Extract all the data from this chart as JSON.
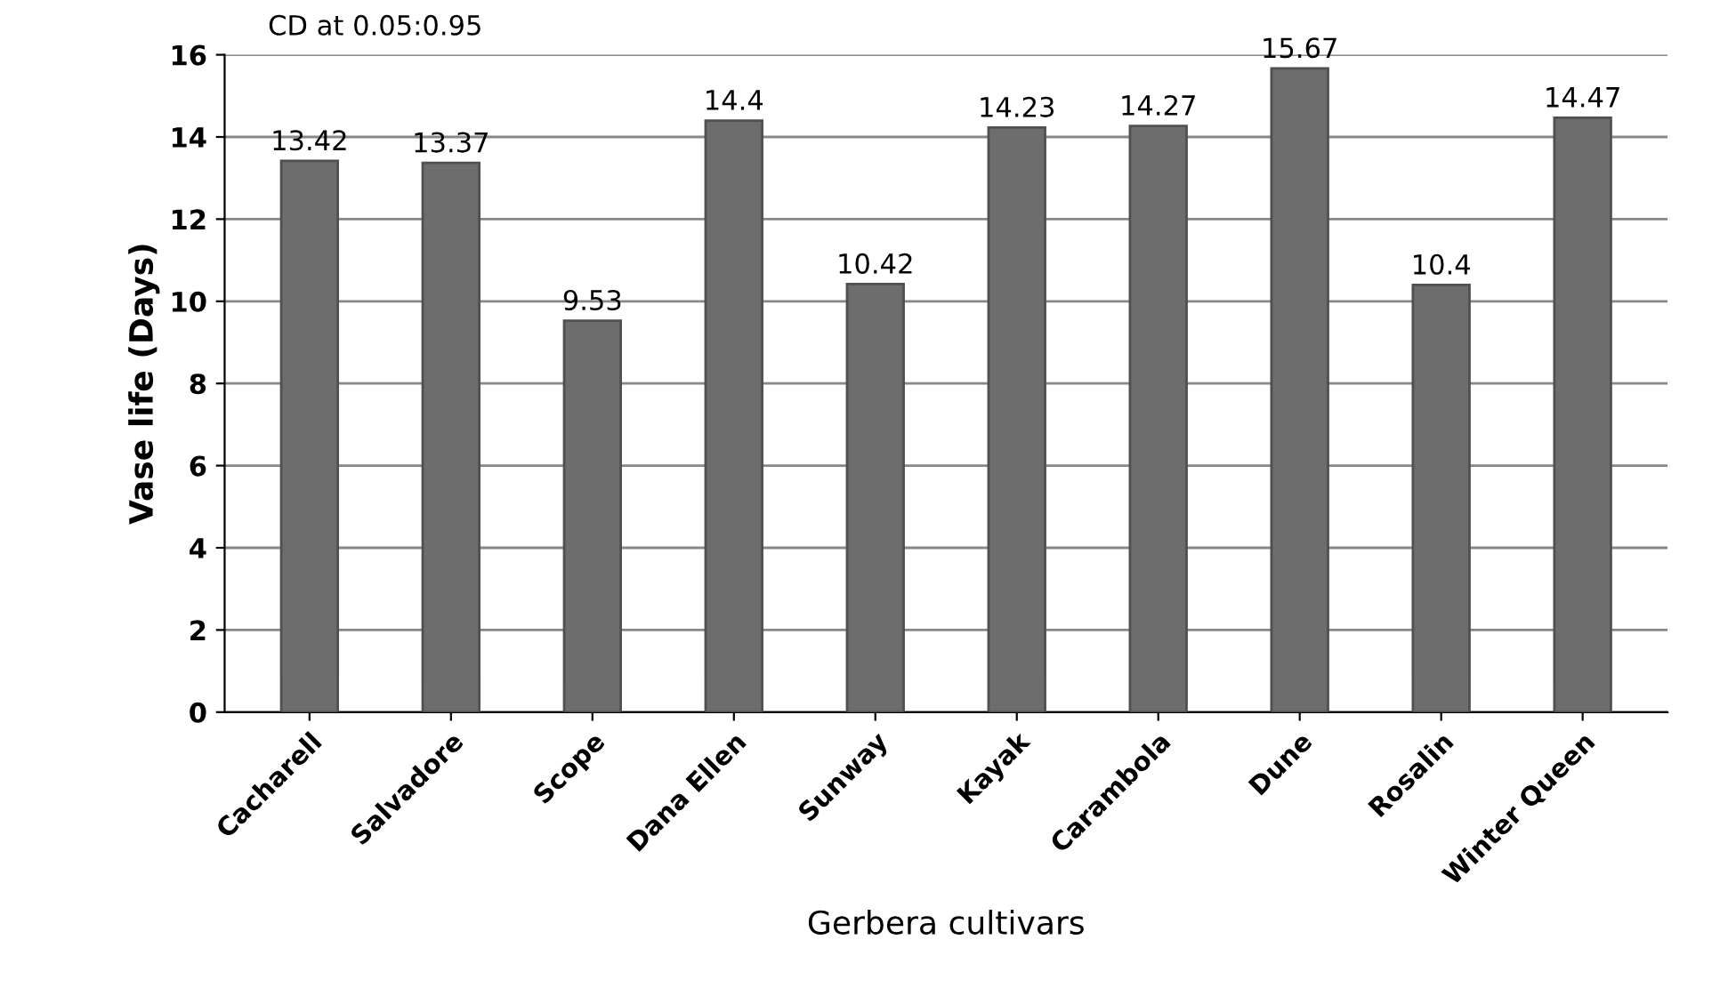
{
  "chart_data": {
    "type": "bar",
    "categories": [
      "Cacharell",
      "Salvadore",
      "Scope",
      "Dana Ellen",
      "Sunway",
      "Kayak",
      "Carambola",
      "Dune",
      "Rosalin",
      "Winter Queen"
    ],
    "values": [
      13.42,
      13.37,
      9.53,
      14.4,
      10.42,
      14.23,
      14.27,
      15.67,
      10.4,
      14.47
    ],
    "color": "#6d6d6d",
    "xlabel": "Gerbera cultivars",
    "ylabel": "Vase life (Days)",
    "annotations": [
      "CD at 0.05:0.95"
    ],
    "ylim": [
      0,
      16
    ],
    "yticks": [
      0,
      2,
      4,
      6,
      8,
      10,
      12,
      14,
      16
    ],
    "grid": "y",
    "data_labels": true,
    "legend": false
  }
}
